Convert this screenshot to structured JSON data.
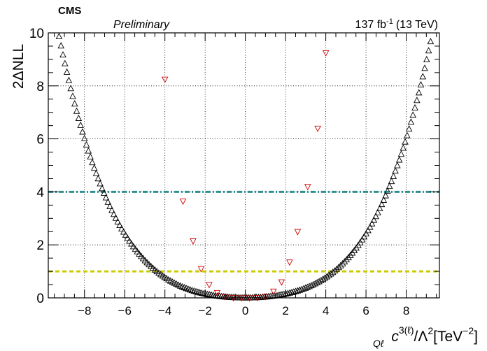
{
  "header": {
    "experiment": "CMS",
    "status": "Preliminary",
    "lumi_value": "137 fb",
    "lumi_exponent": "-1",
    "lumi_energy": "(13 TeV)"
  },
  "chart_data": {
    "type": "scatter",
    "title": "",
    "ylabel": "2ΔNLL",
    "xlabel": {
      "symbol": "c",
      "subscript": "Qℓ",
      "superscript": "3(ℓ)",
      "middle": "/Λ",
      "middle_sup": "2",
      "unit_open": "[TeV",
      "unit_sup": "−2",
      "unit_close": "]"
    },
    "xlim": [
      -9.8,
      9.65
    ],
    "ylim": [
      0,
      10
    ],
    "xticks": [
      -8,
      -6,
      -4,
      -2,
      0,
      2,
      4,
      6,
      8
    ],
    "xtick_labels": [
      "−8",
      "−6",
      "−4",
      "−2",
      "0",
      "2",
      "4",
      "6",
      "8"
    ],
    "yticks": [
      0,
      2,
      4,
      6,
      8,
      10
    ],
    "ytick_labels": [
      "0",
      "2",
      "4",
      "6",
      "8",
      "10"
    ],
    "grid": true,
    "hlines": [
      {
        "y": 4,
        "color": "#2f8f8f",
        "style": "dash-dot"
      },
      {
        "y": 1,
        "color": "#cccc00",
        "style": "dashed"
      }
    ],
    "series": [
      {
        "marker": "triangle-up",
        "color": "#000000",
        "curve": {
          "form": "a*x^2 + b*x^4",
          "a": 0.0325,
          "b": 0.00096,
          "x_range": [
            -9.75,
            9.6
          ],
          "points": 200
        }
      },
      {
        "marker": "triangle-down",
        "color": "#cc0000",
        "x": [
          -4.0,
          -3.1,
          -2.6,
          -2.2,
          -1.8,
          -1.4,
          -1.0,
          -0.6,
          -0.2,
          0.2,
          0.6,
          1.0,
          1.4,
          1.8,
          2.2,
          2.6,
          3.1,
          3.6,
          4.0
        ],
        "y": [
          8.25,
          3.65,
          2.15,
          1.1,
          0.5,
          0.2,
          0.05,
          0.01,
          0.0,
          0.0,
          0.01,
          0.05,
          0.25,
          0.6,
          1.35,
          2.5,
          4.2,
          6.4,
          9.25
        ]
      }
    ]
  }
}
